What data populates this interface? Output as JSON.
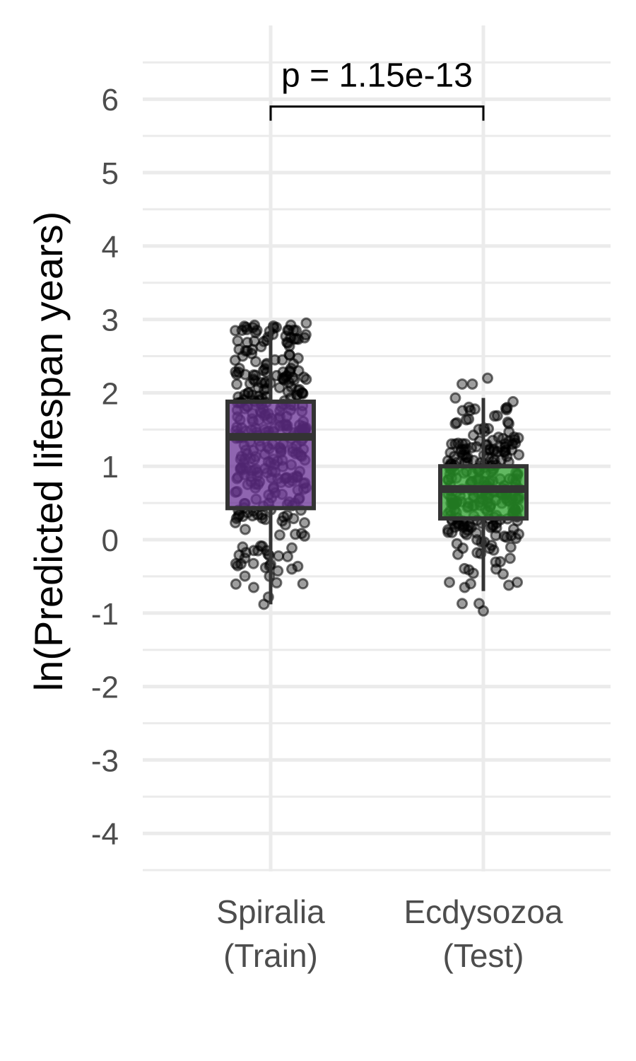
{
  "chart_data": {
    "type": "box",
    "title": "",
    "xlabel": "",
    "ylabel": "ln(Predicted lifespan years)",
    "ylim": [
      -4.5,
      7
    ],
    "yticks": [
      "6",
      "5",
      "4",
      "3",
      "2",
      "1",
      "0",
      "-1",
      "-2",
      "-3",
      "-4"
    ],
    "grid": true,
    "categories": [
      {
        "line1": "Spiralia",
        "line2": "(Train)"
      },
      {
        "line1": "Ecdysozoa",
        "line2": "(Test)"
      }
    ],
    "boxes": [
      {
        "q1": 0.43,
        "median": 1.4,
        "q3": 1.88,
        "whisker_low": -0.88,
        "whisker_high": 2.95,
        "fill": "#6a3196"
      },
      {
        "q1": 0.29,
        "median": 0.69,
        "q3": 1.0,
        "whisker_low": -0.7,
        "whisker_high": 1.93,
        "fill": "#2ca02c"
      }
    ],
    "jitter": [
      {
        "n": 330,
        "points": [
          [
            0.05,
            2.45
          ],
          [
            0.3,
            2.85
          ],
          [
            0.42,
            2.95
          ],
          [
            0.4,
            2.75
          ],
          [
            -0.08,
            2.7
          ],
          [
            -0.33,
            2.5
          ],
          [
            -0.3,
            2.25
          ],
          [
            0.22,
            2.52
          ],
          [
            0.33,
            2.3
          ],
          [
            -0.35,
            -0.33
          ],
          [
            -0.2,
            -0.65
          ],
          [
            -0.06,
            -0.38
          ],
          [
            0.38,
            -0.6
          ],
          [
            0.25,
            -0.4
          ],
          [
            0.2,
            -0.23
          ],
          [
            -0.08,
            -0.88
          ],
          [
            0.4,
            0.05
          ],
          [
            0.4,
            0.23
          ],
          [
            -0.33,
            -0.1
          ],
          [
            -0.15,
            -0.15
          ]
        ]
      },
      {
        "n": 260,
        "points": [
          [
            0.05,
            2.2
          ],
          [
            -0.25,
            2.12
          ],
          [
            -0.13,
            2.12
          ],
          [
            -0.33,
            1.93
          ],
          [
            0.35,
            1.88
          ],
          [
            0.28,
            1.8
          ],
          [
            -0.1,
            1.78
          ],
          [
            -0.33,
            1.58
          ],
          [
            0.3,
            1.58
          ],
          [
            -0.4,
            -0.58
          ],
          [
            -0.22,
            -0.65
          ],
          [
            -0.15,
            -0.6
          ],
          [
            -0.25,
            -0.87
          ],
          [
            -0.05,
            -0.87
          ],
          [
            0.0,
            -0.97
          ],
          [
            0.3,
            -0.62
          ],
          [
            0.4,
            -0.58
          ],
          [
            0.15,
            -0.4
          ],
          [
            0.2,
            -0.3
          ],
          [
            -0.3,
            -0.2
          ]
        ]
      }
    ],
    "annotation": {
      "text": "p = 1.15e-13",
      "y": 5.9
    }
  }
}
